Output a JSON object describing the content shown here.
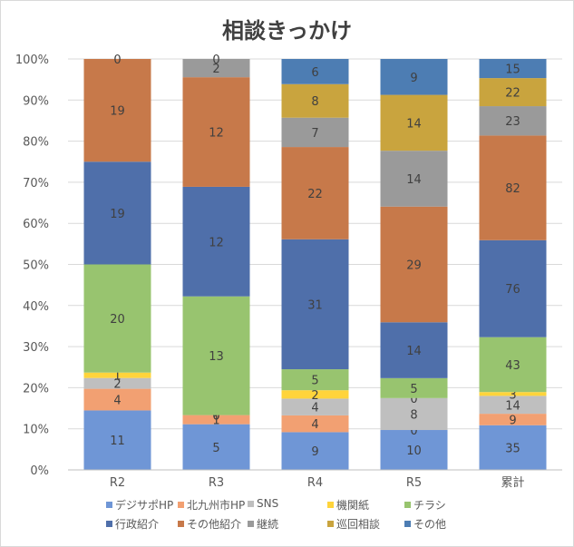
{
  "chart_data": {
    "type": "bar",
    "stacked": "percent",
    "title": "相談きっかけ",
    "categories": [
      "R2",
      "R3",
      "R4",
      "R5",
      "累計"
    ],
    "y_ticks": [
      "0%",
      "10%",
      "20%",
      "30%",
      "40%",
      "50%",
      "60%",
      "70%",
      "80%",
      "90%",
      "100%"
    ],
    "ylim": [
      0,
      100
    ],
    "grid": true,
    "legend_position": "bottom",
    "series": [
      {
        "name": "デジサポHP",
        "color": "#6f96d6",
        "values": [
          11,
          5,
          9,
          10,
          35
        ]
      },
      {
        "name": "北九州市HP",
        "color": "#f2a072",
        "values": [
          4,
          1,
          4,
          0,
          9
        ]
      },
      {
        "name": "SNS",
        "color": "#bfbfbf",
        "values": [
          2,
          0,
          4,
          8,
          14
        ]
      },
      {
        "name": "機関紙",
        "color": "#ffd43b",
        "values": [
          1,
          0,
          2,
          0,
          3
        ]
      },
      {
        "name": "チラシ",
        "color": "#98c46f",
        "values": [
          20,
          13,
          5,
          5,
          43
        ]
      },
      {
        "name": "行政紹介",
        "color": "#4f6faa",
        "values": [
          19,
          12,
          31,
          14,
          76
        ]
      },
      {
        "name": "その他紹介",
        "color": "#c7794a",
        "values": [
          19,
          12,
          22,
          29,
          82
        ]
      },
      {
        "name": "継続",
        "color": "#9a9a9a",
        "values": [
          0,
          2,
          7,
          14,
          23
        ]
      },
      {
        "name": "巡回相談",
        "color": "#c9a43e",
        "values": [
          null,
          null,
          8,
          14,
          22
        ]
      },
      {
        "name": "その他",
        "color": "#4d7db3",
        "values": [
          null,
          0,
          6,
          9,
          15
        ]
      }
    ]
  }
}
